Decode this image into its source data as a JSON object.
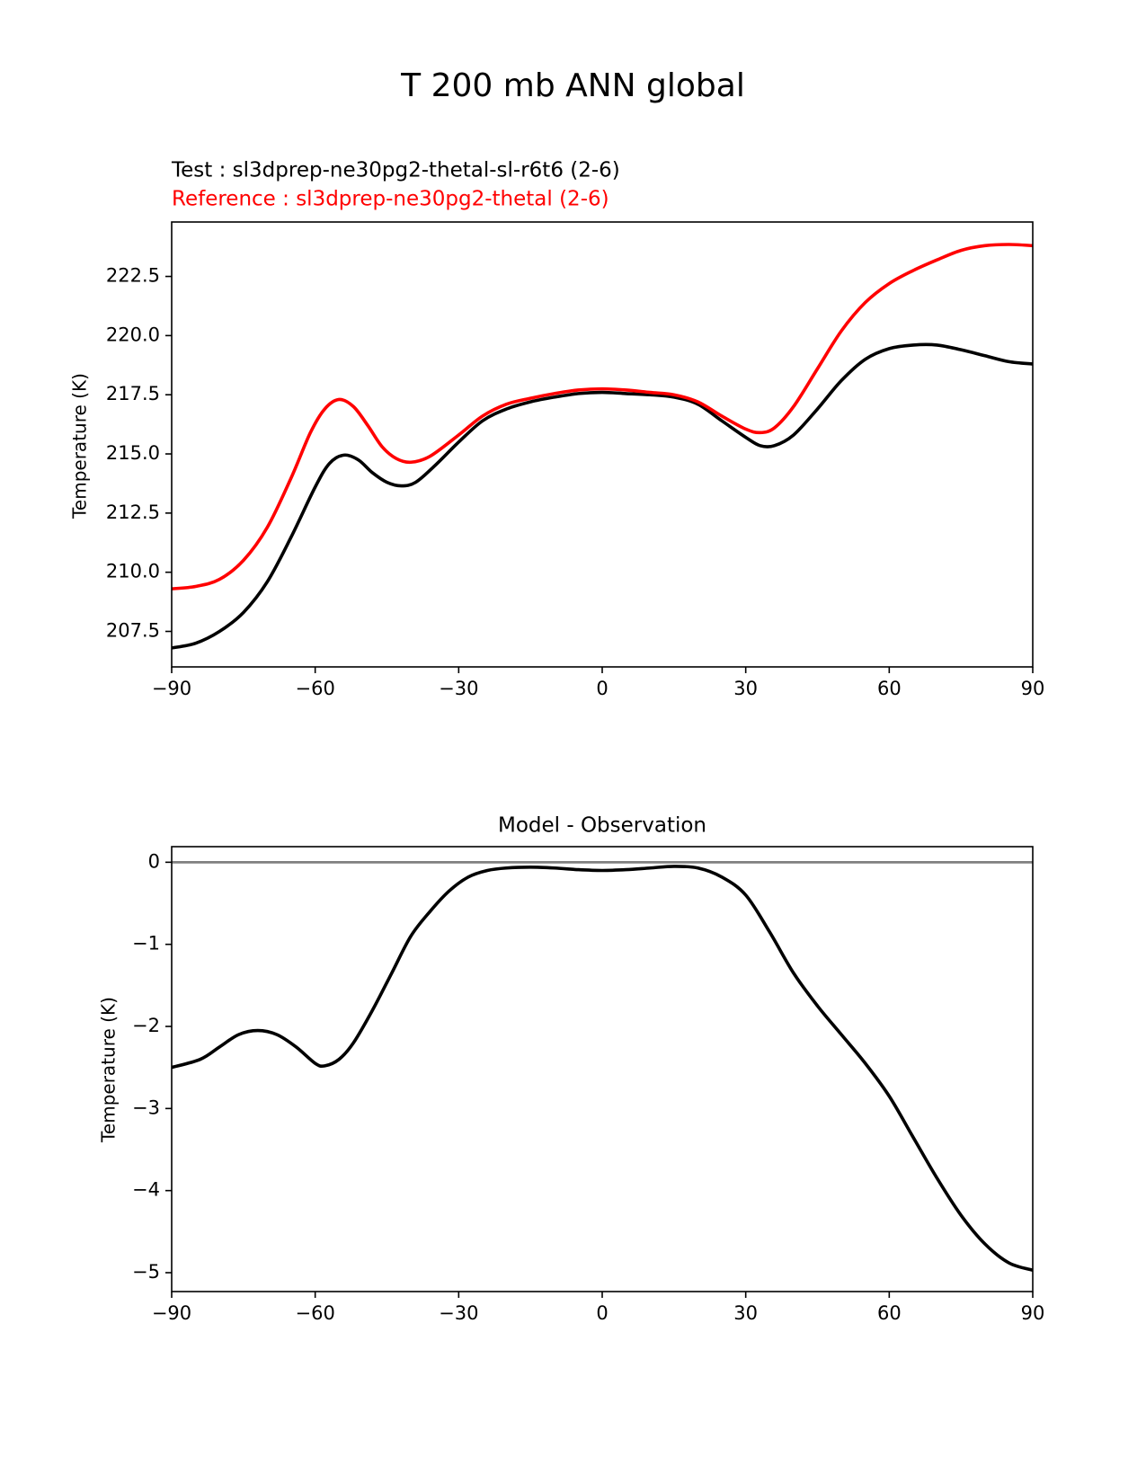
{
  "figure": {
    "title": "T 200 mb ANN global"
  },
  "colors": {
    "test": "#000000",
    "reference": "#ff0000",
    "zero_line": "#808080"
  },
  "chart_data": [
    {
      "type": "line",
      "title": "",
      "test_label": "Test : sl3dprep-ne30pg2-thetal-sl-r6t6 (2-6)",
      "reference_label": "Reference : sl3dprep-ne30pg2-thetal (2-6)",
      "xlabel": "",
      "ylabel": "Temperature (K)",
      "xlim": [
        -90,
        90
      ],
      "ylim": [
        206,
        224.8
      ],
      "xticks": [
        -90,
        -60,
        -30,
        0,
        30,
        60,
        90
      ],
      "xtick_labels": [
        "−90",
        "−60",
        "−30",
        "0",
        "30",
        "60",
        "90"
      ],
      "yticks": [
        207.5,
        210.0,
        212.5,
        215.0,
        217.5,
        220.0,
        222.5
      ],
      "ytick_labels": [
        "207.5",
        "210.0",
        "212.5",
        "215.0",
        "217.5",
        "220.0",
        "222.5"
      ],
      "grid": false,
      "series": [
        {
          "role": "test",
          "color": "#000000",
          "points": [
            [
              -90,
              206.8
            ],
            [
              -85,
              207.0
            ],
            [
              -80,
              207.5
            ],
            [
              -75,
              208.3
            ],
            [
              -70,
              209.6
            ],
            [
              -65,
              211.5
            ],
            [
              -60,
              213.6
            ],
            [
              -57,
              214.6
            ],
            [
              -54,
              214.95
            ],
            [
              -51,
              214.75
            ],
            [
              -48,
              214.2
            ],
            [
              -45,
              213.8
            ],
            [
              -42,
              213.65
            ],
            [
              -39,
              213.8
            ],
            [
              -35,
              214.5
            ],
            [
              -30,
              215.5
            ],
            [
              -25,
              216.4
            ],
            [
              -20,
              216.9
            ],
            [
              -15,
              217.2
            ],
            [
              -10,
              217.4
            ],
            [
              -5,
              217.55
            ],
            [
              0,
              217.6
            ],
            [
              5,
              217.55
            ],
            [
              10,
              217.5
            ],
            [
              15,
              217.4
            ],
            [
              20,
              217.1
            ],
            [
              25,
              216.4
            ],
            [
              30,
              215.7
            ],
            [
              33,
              215.35
            ],
            [
              36,
              215.35
            ],
            [
              40,
              215.8
            ],
            [
              45,
              216.9
            ],
            [
              50,
              218.1
            ],
            [
              55,
              219.0
            ],
            [
              60,
              219.45
            ],
            [
              65,
              219.6
            ],
            [
              70,
              219.6
            ],
            [
              75,
              219.4
            ],
            [
              80,
              219.15
            ],
            [
              85,
              218.9
            ],
            [
              90,
              218.8
            ]
          ]
        },
        {
          "role": "reference",
          "color": "#ff0000",
          "points": [
            [
              -90,
              209.3
            ],
            [
              -85,
              209.4
            ],
            [
              -80,
              209.7
            ],
            [
              -75,
              210.5
            ],
            [
              -70,
              211.9
            ],
            [
              -65,
              214.0
            ],
            [
              -61,
              215.9
            ],
            [
              -58,
              216.9
            ],
            [
              -55,
              217.3
            ],
            [
              -52,
              217.0
            ],
            [
              -49,
              216.2
            ],
            [
              -46,
              215.3
            ],
            [
              -43,
              214.8
            ],
            [
              -40,
              214.65
            ],
            [
              -36,
              214.9
            ],
            [
              -30,
              215.8
            ],
            [
              -25,
              216.6
            ],
            [
              -20,
              217.1
            ],
            [
              -15,
              217.35
            ],
            [
              -10,
              217.55
            ],
            [
              -5,
              217.7
            ],
            [
              0,
              217.75
            ],
            [
              5,
              217.7
            ],
            [
              10,
              217.6
            ],
            [
              15,
              217.5
            ],
            [
              20,
              217.2
            ],
            [
              25,
              216.6
            ],
            [
              30,
              216.05
            ],
            [
              33,
              215.9
            ],
            [
              36,
              216.1
            ],
            [
              40,
              217.0
            ],
            [
              45,
              218.6
            ],
            [
              50,
              220.2
            ],
            [
              55,
              221.4
            ],
            [
              60,
              222.2
            ],
            [
              65,
              222.75
            ],
            [
              70,
              223.2
            ],
            [
              75,
              223.6
            ],
            [
              80,
              223.8
            ],
            [
              85,
              223.85
            ],
            [
              90,
              223.8
            ]
          ]
        }
      ]
    },
    {
      "type": "line",
      "title": "Model - Observation",
      "xlabel": "",
      "ylabel": "Temperature (K)",
      "xlim": [
        -90,
        90
      ],
      "ylim": [
        -5.23,
        0.19
      ],
      "xticks": [
        -90,
        -60,
        -30,
        0,
        30,
        60,
        90
      ],
      "xtick_labels": [
        "−90",
        "−60",
        "−30",
        "0",
        "30",
        "60",
        "90"
      ],
      "yticks": [
        0,
        -1,
        -2,
        -3,
        -4,
        -5
      ],
      "ytick_labels": [
        "0",
        "−1",
        "−2",
        "−3",
        "−4",
        "−5"
      ],
      "grid": false,
      "zero_line": 0,
      "series": [
        {
          "role": "difference",
          "color": "#000000",
          "points": [
            [
              -90,
              -2.5
            ],
            [
              -84,
              -2.4
            ],
            [
              -80,
              -2.25
            ],
            [
              -76,
              -2.1
            ],
            [
              -72,
              -2.05
            ],
            [
              -68,
              -2.1
            ],
            [
              -64,
              -2.25
            ],
            [
              -60,
              -2.45
            ],
            [
              -58,
              -2.48
            ],
            [
              -55,
              -2.4
            ],
            [
              -52,
              -2.2
            ],
            [
              -48,
              -1.8
            ],
            [
              -44,
              -1.35
            ],
            [
              -40,
              -0.9
            ],
            [
              -36,
              -0.6
            ],
            [
              -32,
              -0.35
            ],
            [
              -28,
              -0.18
            ],
            [
              -24,
              -0.1
            ],
            [
              -20,
              -0.07
            ],
            [
              -15,
              -0.06
            ],
            [
              -10,
              -0.07
            ],
            [
              -5,
              -0.09
            ],
            [
              0,
              -0.1
            ],
            [
              5,
              -0.09
            ],
            [
              10,
              -0.07
            ],
            [
              15,
              -0.05
            ],
            [
              20,
              -0.07
            ],
            [
              25,
              -0.18
            ],
            [
              30,
              -0.4
            ],
            [
              35,
              -0.85
            ],
            [
              40,
              -1.35
            ],
            [
              45,
              -1.75
            ],
            [
              50,
              -2.1
            ],
            [
              55,
              -2.45
            ],
            [
              60,
              -2.85
            ],
            [
              65,
              -3.35
            ],
            [
              70,
              -3.85
            ],
            [
              75,
              -4.3
            ],
            [
              80,
              -4.65
            ],
            [
              85,
              -4.88
            ],
            [
              90,
              -4.97
            ]
          ]
        }
      ]
    }
  ]
}
